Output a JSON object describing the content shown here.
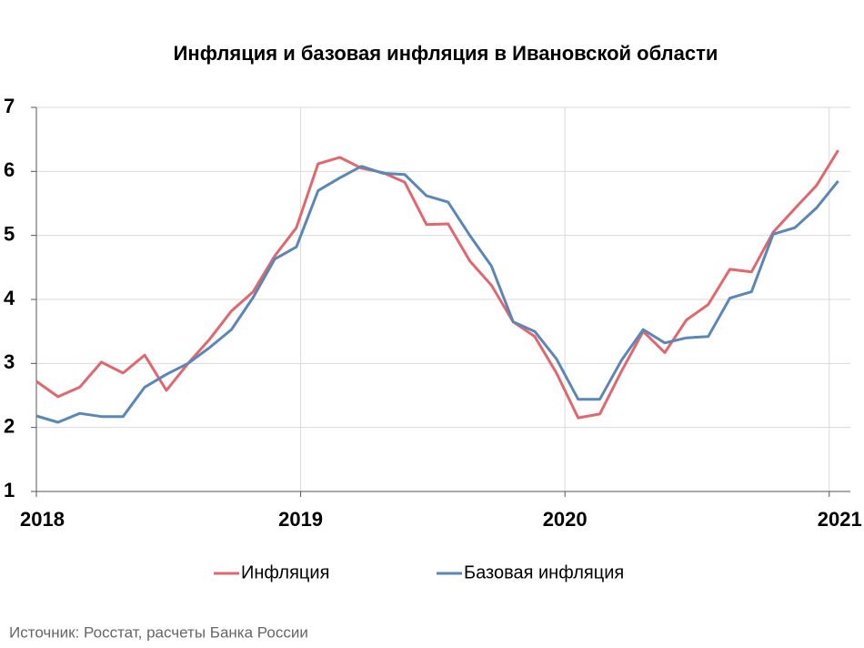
{
  "chart_data": {
    "type": "line",
    "title": "Инфляция и базовая инфляция в Ивановской области",
    "source": "Источник: Росстат, расчеты Банка России",
    "x": [
      2018,
      2018.082,
      2018.164,
      2018.246,
      2018.328,
      2018.41,
      2018.492,
      2018.574,
      2018.656,
      2018.738,
      2018.82,
      2018.902,
      2018.984,
      2019.066,
      2019.148,
      2019.23,
      2019.312,
      2019.394,
      2019.476,
      2019.558,
      2019.64,
      2019.722,
      2019.804,
      2019.886,
      2019.968,
      2020.05,
      2020.132,
      2020.214,
      2020.296,
      2020.378,
      2020.46,
      2020.542,
      2020.624,
      2020.706,
      2020.788,
      2020.87,
      2020.952,
      2021.034
    ],
    "series": [
      {
        "name": "Инфляция",
        "color": "#e0676d",
        "values": [
          2.72,
          2.48,
          2.63,
          3.02,
          2.85,
          3.13,
          2.58,
          3.0,
          3.38,
          3.82,
          4.12,
          4.68,
          5.12,
          6.12,
          6.22,
          6.05,
          5.98,
          5.83,
          5.17,
          5.18,
          4.6,
          4.22,
          3.65,
          3.42,
          2.85,
          2.15,
          2.21,
          2.88,
          3.5,
          3.17,
          3.68,
          3.92,
          4.47,
          4.43,
          5.05,
          5.42,
          5.78,
          6.33
        ]
      },
      {
        "name": "Базовая инфляция",
        "color": "#5a86b8",
        "values": [
          2.18,
          2.08,
          2.22,
          2.17,
          2.17,
          2.63,
          2.83,
          3.0,
          3.25,
          3.53,
          4.03,
          4.63,
          4.82,
          5.7,
          5.9,
          6.08,
          5.97,
          5.95,
          5.62,
          5.52,
          5.0,
          4.52,
          3.65,
          3.5,
          3.07,
          2.44,
          2.44,
          3.05,
          3.53,
          3.32,
          3.4,
          3.42,
          4.02,
          4.12,
          5.02,
          5.12,
          5.43,
          5.85
        ]
      }
    ],
    "xlim": [
      2018,
      2021.08
    ],
    "xticks": [
      2018,
      2019,
      2020,
      2021
    ],
    "ylim": [
      1,
      7
    ],
    "yticks": [
      1,
      2,
      3,
      4,
      5,
      6,
      7
    ],
    "grid": true,
    "legend": "bottom"
  }
}
